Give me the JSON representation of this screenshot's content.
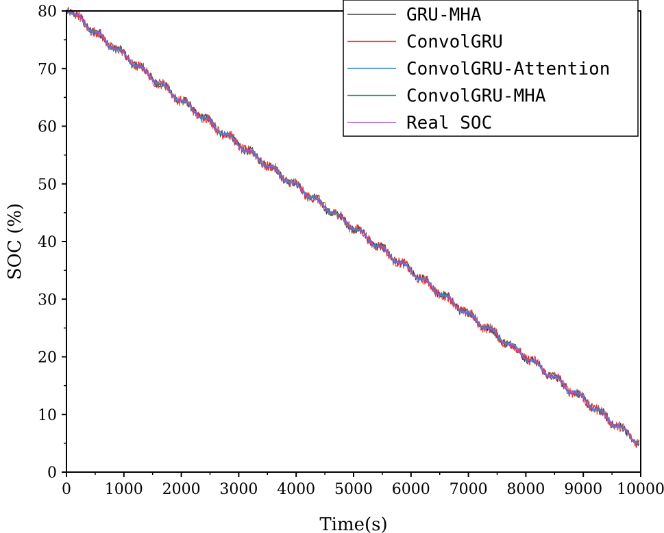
{
  "chart_data": {
    "type": "line",
    "title": "",
    "xlabel": "Time(s)",
    "ylabel": "SOC (%)",
    "xlim": [
      0,
      10000
    ],
    "ylim": [
      0,
      80
    ],
    "x_ticks": [
      "0",
      "1000",
      "2000",
      "3000",
      "4000",
      "5000",
      "6000",
      "7000",
      "8000",
      "9000",
      "10000"
    ],
    "y_ticks": [
      "0",
      "10",
      "20",
      "30",
      "40",
      "50",
      "60",
      "70",
      "80"
    ],
    "grid": false,
    "legend_position": "top-right",
    "real_soc_points": [
      [
        0,
        80
      ],
      [
        200,
        79.2
      ],
      [
        450,
        76.8
      ],
      [
        1000,
        72.5
      ],
      [
        2000,
        64.6
      ],
      [
        3000,
        57.0
      ],
      [
        4000,
        49.8
      ],
      [
        5000,
        42.6
      ],
      [
        6000,
        35.0
      ],
      [
        7000,
        27.5
      ],
      [
        8000,
        20.2
      ],
      [
        9000,
        12.8
      ],
      [
        10000,
        5.0
      ]
    ],
    "series": [
      {
        "name": "GRU-MHA",
        "color": "#404040"
      },
      {
        "name": "ConvolGRU",
        "color": "#e8323c"
      },
      {
        "name": "ConvolGRU-Attention",
        "color": "#2a7bd0"
      },
      {
        "name": "ConvolGRU-MHA",
        "color": "#2e9e4a"
      },
      {
        "name": "Real SOC",
        "color": "#a855e0"
      }
    ]
  }
}
